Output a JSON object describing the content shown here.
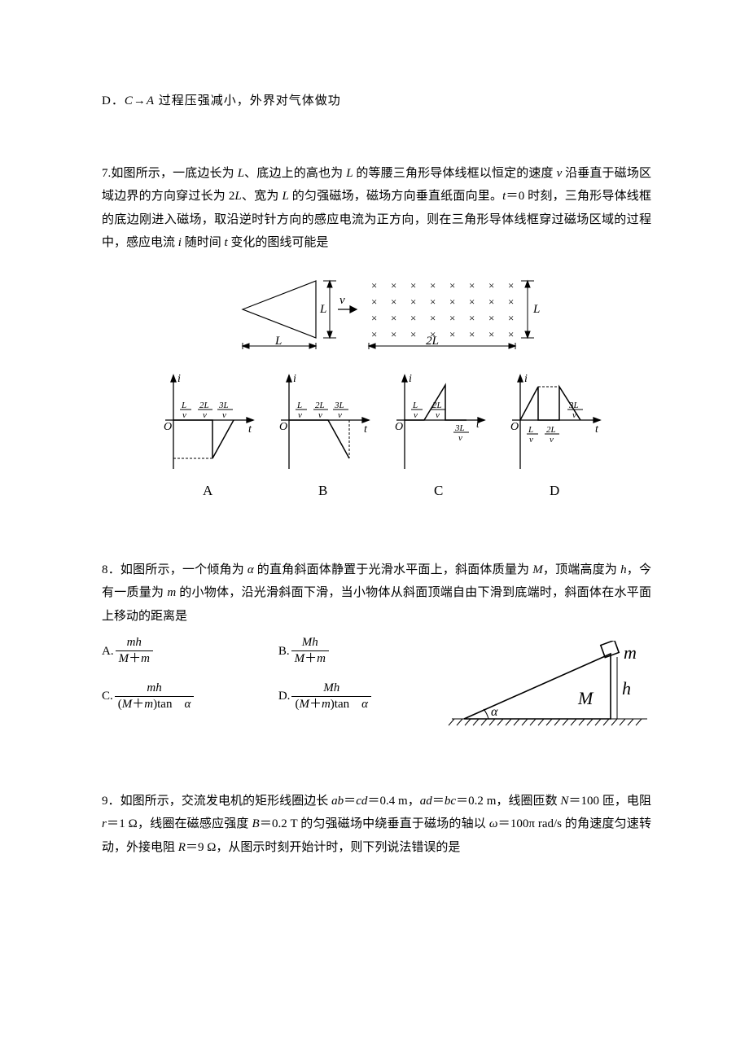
{
  "q6": {
    "optD_label": "D．",
    "optD_pre": "C→A",
    "optD_post": " 过程压强减小，外界对气体做功"
  },
  "q7": {
    "number": "7.",
    "stem1_a": "如图所示，一底边长为 ",
    "stem1_b": "L",
    "stem1_c": "、底边上的高也为 ",
    "stem1_d": "L",
    "stem1_e": " 的等腰三角形导体线框以恒定的速度 ",
    "stem1_f": "v",
    "stem1_g": " 沿垂直于磁场区域边界的方向穿过长为 2",
    "stem1_h": "L",
    "stem1_i": "、宽为 ",
    "stem1_j": "L",
    "stem1_k": " 的匀强磁场，磁场方向垂直纸面向里。",
    "stem1_l": "t",
    "stem1_m": "＝0 时刻，三角形导体线框的底边刚进入磁场，取沿逆时针方向的感应电流为正方向，则在三角形导体线框穿过磁场区域的过程中，感应电流 ",
    "stem1_n": "i",
    "stem1_o": " 随时间 ",
    "stem1_p": "t",
    "stem1_q": " 变化的图线可能是",
    "figtop": {
      "L": "L",
      "v": "v",
      "twoL": "2L",
      "x_glyph": "×"
    },
    "labels": {
      "A": "A",
      "B": "B",
      "C": "C",
      "D": "D"
    },
    "axis": {
      "i": "i",
      "O": "O",
      "t": "t"
    },
    "ticks": {
      "Lv": "L",
      "v": "v",
      "twoLv": "2L",
      "threeLv": "3L"
    },
    "colors": {
      "stroke": "#000000"
    }
  },
  "q8": {
    "number": "8．",
    "stem_a": "如图所示，一个倾角为 ",
    "stem_b": "α",
    "stem_c": " 的直角斜面体静置于光滑水平面上，斜面体质量为 ",
    "stem_d": "M",
    "stem_e": "，顶端高度为 ",
    "stem_f": "h",
    "stem_g": "，今有一质量为 ",
    "stem_h": "m",
    "stem_i": " 的小物体，沿光滑斜面下滑，当小物体从斜面顶端自由下滑到底端时，斜面体在水平面上移动的距离是",
    "optA_label": "A.",
    "optA_num": "mh",
    "optA_den_a": "M",
    "optA_den_b": "＋",
    "optA_den_c": "m",
    "optB_label": "B.",
    "optB_num": "Mh",
    "optB_den_a": "M",
    "optB_den_b": "＋",
    "optB_den_c": "m",
    "optC_label": "C.",
    "optC_num": "mh",
    "optC_den_a": "(",
    "optC_den_b": "M",
    "optC_den_c": "＋",
    "optC_den_d": "m",
    "optC_den_e": ")tan　",
    "optC_den_f": "α",
    "optD_label": "D.",
    "optD_num": "Mh",
    "optD_den_a": "(",
    "optD_den_b": "M",
    "optD_den_c": "＋",
    "optD_den_d": "m",
    "optD_den_e": ")tan　",
    "optD_den_f": "α",
    "fig": {
      "m": "m",
      "M": "M",
      "h": "h",
      "alpha": "α"
    }
  },
  "q9": {
    "number": "9．",
    "t1": "如图所示，交流发电机的矩形线圈边长 ",
    "t2": "ab",
    "t3": "＝",
    "t4": "cd",
    "t5": "＝0.4 m，",
    "t6": "ad",
    "t7": "＝",
    "t8": "bc",
    "t9": "＝0.2 m，线圈匝数 ",
    "t10": "N",
    "t11": "＝100 匝，电阻 ",
    "t12": "r",
    "t13": "＝1 Ω，线圈在磁感应强度 ",
    "t14": "B",
    "t15": "＝0.2 T 的匀强磁场中绕垂直于磁场的轴以 ",
    "t16": "ω",
    "t17": "＝100π rad/s 的角速度匀速转动，外接电阻 ",
    "t18": "R",
    "t19": "＝9 Ω，从图示时刻开始计时，则下列说法错误的是"
  }
}
